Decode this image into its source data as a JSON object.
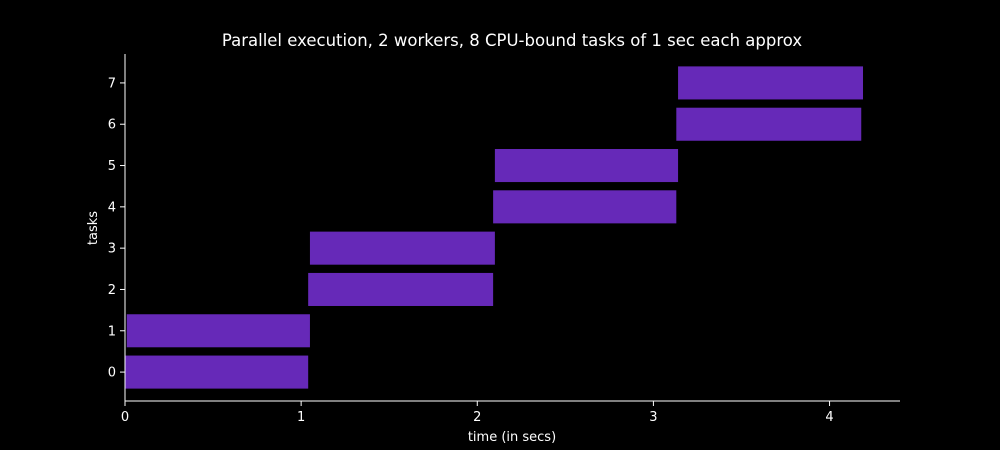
{
  "chart_data": {
    "type": "bar",
    "orientation": "horizontal",
    "title": "Parallel execution, 2 workers, 8 CPU-bound tasks of 1 sec each approx",
    "xlabel": "time (in secs)",
    "ylabel": "tasks",
    "xlim": [
      0,
      4.4
    ],
    "ylim": [
      -0.7,
      7.7
    ],
    "xticks": [
      0,
      1,
      2,
      3,
      4
    ],
    "yticks": [
      0,
      1,
      2,
      3,
      4,
      5,
      6,
      7
    ],
    "grid": false,
    "bar_color": "#6629b8",
    "background": "#000000",
    "foreground": "#ffffff",
    "tasks": [
      {
        "task": 0,
        "start": 0.0,
        "end": 1.04
      },
      {
        "task": 1,
        "start": 0.01,
        "end": 1.05
      },
      {
        "task": 2,
        "start": 1.04,
        "end": 2.09
      },
      {
        "task": 3,
        "start": 1.05,
        "end": 2.1
      },
      {
        "task": 4,
        "start": 2.09,
        "end": 3.13
      },
      {
        "task": 5,
        "start": 2.1,
        "end": 3.14
      },
      {
        "task": 6,
        "start": 3.13,
        "end": 4.18
      },
      {
        "task": 7,
        "start": 3.14,
        "end": 4.19
      }
    ]
  }
}
